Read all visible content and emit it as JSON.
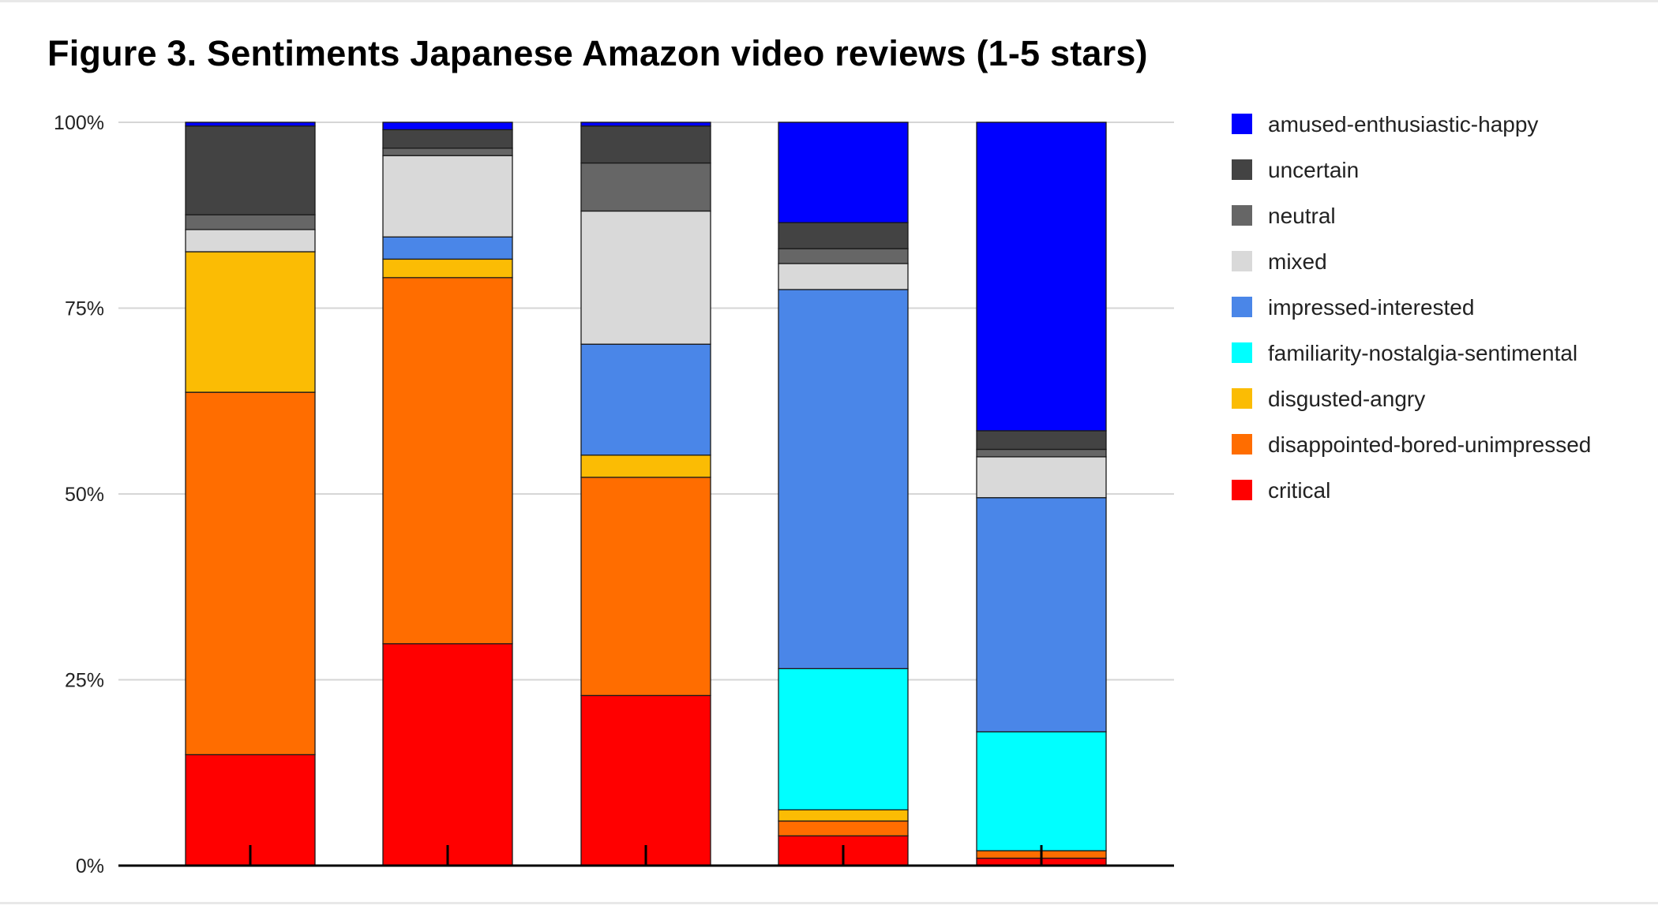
{
  "chart_data": {
    "type": "bar",
    "stacked": true,
    "normalized": true,
    "title": "Figure 3. Sentiments Japanese Amazon video reviews (1-5 stars)",
    "xlabel": "",
    "ylabel": "",
    "ylim": [
      0,
      100
    ],
    "y_ticks": [
      "0%",
      "25%",
      "50%",
      "75%",
      "100%"
    ],
    "y_tick_values": [
      0,
      25,
      50,
      75,
      100
    ],
    "categories": [
      "",
      "",
      "",
      "",
      ""
    ],
    "grid": true,
    "legend_position": "right",
    "series": [
      {
        "name": "critical",
        "color": "#ff0000",
        "values": [
          15,
          30,
          23,
          4,
          1
        ]
      },
      {
        "name": "disappointed-bored-unimpressed",
        "color": "#ff6d00",
        "values": [
          49,
          49.5,
          29.5,
          2,
          1
        ]
      },
      {
        "name": "disgusted-angry",
        "color": "#fbbc04",
        "values": [
          19,
          2.5,
          3,
          1.5,
          0
        ]
      },
      {
        "name": "familiarity-nostalgia-sentimental",
        "color": "#00ffff",
        "values": [
          0,
          0,
          0,
          19,
          16
        ]
      },
      {
        "name": "impressed-interested",
        "color": "#4a86e8",
        "values": [
          0,
          3,
          15,
          51,
          31.5
        ]
      },
      {
        "name": "mixed",
        "color": "#d9d9d9",
        "values": [
          3,
          11,
          18,
          3.5,
          5.5
        ]
      },
      {
        "name": "neutral",
        "color": "#666666",
        "values": [
          2,
          1,
          6.5,
          2,
          1
        ]
      },
      {
        "name": "uncertain",
        "color": "#434343",
        "values": [
          12,
          2.5,
          5,
          3.5,
          2.5
        ]
      },
      {
        "name": "amused-enthusiastic-happy",
        "color": "#0000ff",
        "values": [
          0.5,
          1,
          0.5,
          13.5,
          41.5
        ]
      }
    ]
  }
}
